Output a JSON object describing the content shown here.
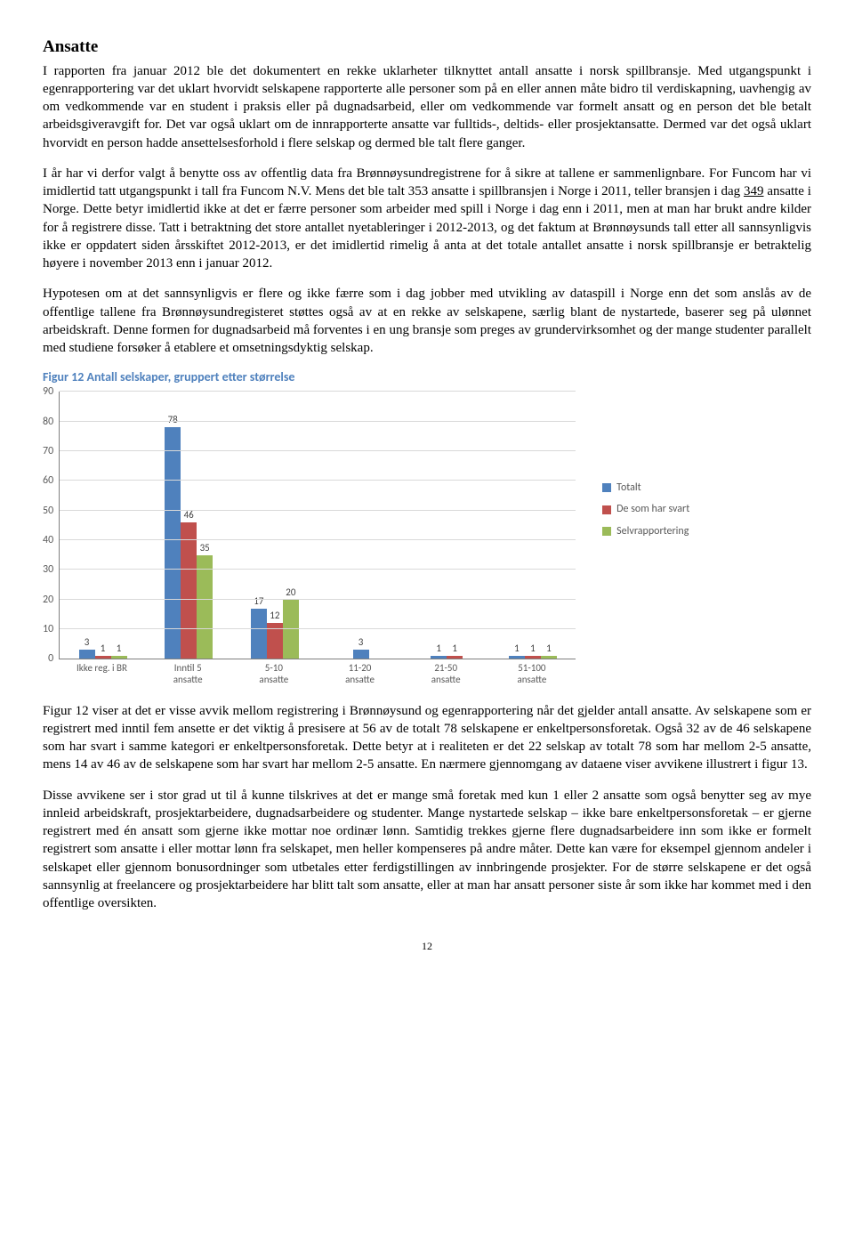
{
  "heading": "Ansatte",
  "para1": "I rapporten fra januar 2012 ble det dokumentert en rekke uklarheter tilknyttet antall ansatte i norsk spillbransje. Med utgangspunkt i egenrapportering var det uklart hvorvidt selskapene rapporterte alle personer som på en eller annen måte bidro til verdiskapning, uavhengig av om vedkommende var en student i praksis eller på dugnadsarbeid, eller om vedkommende var formelt ansatt og en person det ble betalt arbeidsgiveravgift for. Det var også uklart om de innrapporterte ansatte var fulltids-, deltids- eller prosjektansatte. Dermed var det også uklart hvorvidt en person hadde ansettelsesforhold i flere selskap og dermed ble talt flere ganger.",
  "para2_a": "I år har vi derfor valgt å benytte oss av offentlig data fra Brønnøysundregistrene for å sikre at tallene er sammenlignbare. For Funcom har vi imidlertid tatt utgangspunkt i tall fra Funcom N.V. Mens det ble talt 353 ansatte i spillbransjen i Norge i 2011, teller bransjen i dag ",
  "para2_u": "349",
  "para2_b": " ansatte i Norge. Dette betyr imidlertid ikke at det er færre personer som arbeider med spill i Norge i dag enn i 2011, men at man har brukt andre kilder for å registrere disse. Tatt i betraktning det store antallet nyetableringer i 2012-2013, og det faktum at Brønnøysunds tall etter all sannsynligvis ikke er oppdatert siden årsskiftet 2012-2013, er det imidlertid rimelig å anta at det totale antallet ansatte i norsk spillbransje er betraktelig høyere i november 2013 enn i januar 2012.",
  "para3": "Hypotesen om at det sannsynligvis er flere og ikke færre som i dag jobber med utvikling av dataspill i Norge enn det som anslås av de offentlige tallene fra Brønnøysundregisteret støttes også av at en rekke av selskapene, særlig blant de nystartede, baserer seg på ulønnet arbeidskraft. Denne formen for dugnadsarbeid må forventes i en ung bransje som preges av grundervirksomhet og der mange studenter parallelt med studiene forsøker å etablere et omsetningsdyktig selskap.",
  "figure_title": "Figur 12 Antall selskaper, gruppert etter størrelse",
  "chart": {
    "type": "bar",
    "ymax": 90,
    "ytick_step": 10,
    "categories": [
      "Ikke reg. i BR",
      "Inntil 5 ansatte",
      "5-10 ansatte",
      "11-20 ansatte",
      "21-50 ansatte",
      "51-100 ansatte"
    ],
    "series": [
      {
        "name": "Totalt",
        "color": "#4f81bd",
        "values": [
          3,
          78,
          17,
          3,
          1,
          1
        ]
      },
      {
        "name": "De som har svart",
        "color": "#c0504d",
        "values": [
          1,
          46,
          12,
          null,
          1,
          1
        ]
      },
      {
        "name": "Selvrapportering",
        "color": "#9bbb59",
        "values": [
          1,
          35,
          20,
          null,
          null,
          1
        ]
      }
    ],
    "grid_color": "#d9d9d9",
    "axis_color": "#808080",
    "label_color": "#595959",
    "background_color": "#ffffff"
  },
  "para4": "Figur 12 viser at det er visse avvik mellom registrering i Brønnøysund og egenrapportering når det gjelder antall ansatte. Av selskapene som er registrert med inntil fem ansette er det viktig å presisere at 56 av de totalt 78 selskapene er enkeltpersonsforetak. Også 32 av de 46 selskapene som har svart i samme kategori er enkeltpersonsforetak. Dette betyr at i realiteten er det 22 selskap av totalt 78 som har mellom 2-5 ansatte, mens 14 av 46 av de selskapene som har svart har mellom 2-5 ansatte. En nærmere gjennomgang av dataene viser avvikene illustrert i figur 13.",
  "para5": "Disse avvikene ser i stor grad ut til å kunne tilskrives at det er mange små foretak med kun 1 eller 2 ansatte som også benytter seg av mye innleid arbeidskraft, prosjektarbeidere, dugnadsarbeidere og studenter. Mange nystartede selskap – ikke bare enkeltpersonsforetak – er gjerne registrert med én ansatt som gjerne ikke mottar noe ordinær lønn. Samtidig trekkes gjerne flere dugnadsarbeidere inn som ikke er formelt registrert som ansatte i eller mottar lønn fra selskapet, men heller kompenseres på andre måter. Dette kan være for eksempel gjennom andeler i selskapet eller gjennom bonusordninger som utbetales etter ferdigstillingen av innbringende prosjekter. For de større selskapene er det også sannsynlig at freelancere og prosjektarbeidere har blitt talt som ansatte, eller at man har ansatt personer siste år som ikke har kommet med i den offentlige oversikten.",
  "page_number": "12"
}
